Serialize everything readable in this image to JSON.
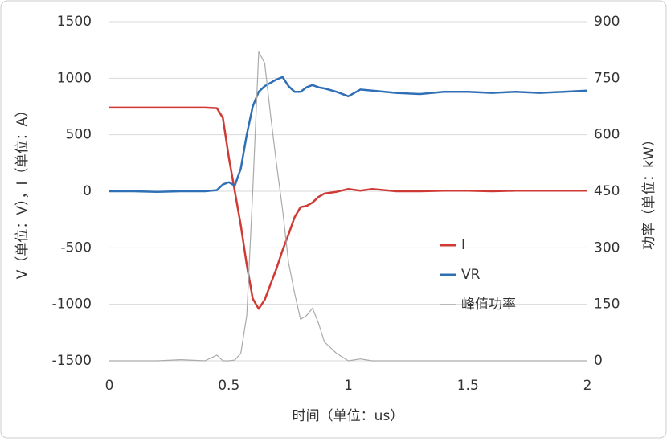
{
  "chart_data": {
    "type": "line",
    "x_label": "时间（单位：us）",
    "y_label": "V（单位：V），I（单位：A）",
    "y2_label": "功率（单位：kW）",
    "x": [
      0,
      0.1,
      0.2,
      0.3,
      0.4,
      0.45,
      0.475,
      0.5,
      0.525,
      0.55,
      0.575,
      0.6,
      0.625,
      0.65,
      0.675,
      0.7,
      0.725,
      0.75,
      0.775,
      0.8,
      0.825,
      0.85,
      0.875,
      0.9,
      0.95,
      1,
      1.05,
      1.1,
      1.2,
      1.3,
      1.4,
      1.5,
      1.6,
      1.7,
      1.8,
      1.9,
      2
    ],
    "series": [
      {
        "name": "I",
        "color": "#d03a35",
        "values": [
          740,
          740,
          740,
          740,
          740,
          735,
          650,
          300,
          0,
          -300,
          -650,
          -950,
          -1040,
          -960,
          -820,
          -680,
          -520,
          -380,
          -230,
          -140,
          -130,
          -100,
          -50,
          -20,
          -5,
          20,
          5,
          20,
          0,
          0,
          5,
          5,
          0,
          5,
          5,
          5,
          5
        ]
      },
      {
        "name": "VR",
        "color": "#2f6fb5",
        "values": [
          0,
          0,
          -5,
          0,
          0,
          10,
          60,
          80,
          50,
          200,
          500,
          750,
          880,
          930,
          960,
          990,
          1010,
          930,
          880,
          880,
          920,
          940,
          920,
          910,
          880,
          840,
          900,
          890,
          870,
          860,
          880,
          880,
          870,
          880,
          870,
          880,
          890
        ]
      },
      {
        "name": "峰值功率",
        "color": "#aaaaaa",
        "axis": "y2",
        "values": [
          0,
          0,
          0,
          3,
          0,
          15,
          0,
          0,
          2,
          20,
          120,
          450,
          820,
          790,
          650,
          520,
          400,
          260,
          180,
          110,
          120,
          140,
          100,
          50,
          20,
          0,
          5,
          0,
          0,
          0,
          0,
          0,
          0,
          0,
          0,
          0,
          0
        ]
      }
    ],
    "xlim": [
      0,
      2
    ],
    "xticks": [
      0,
      0.5,
      1,
      1.5,
      2
    ],
    "ylim": [
      -1500,
      1500
    ],
    "yticks": [
      -1500,
      -1000,
      -500,
      0,
      500,
      1000,
      1500
    ],
    "y2lim": [
      0,
      900
    ],
    "y2ticks": [
      0,
      150,
      300,
      450,
      600,
      750,
      900
    ],
    "grid": true
  }
}
